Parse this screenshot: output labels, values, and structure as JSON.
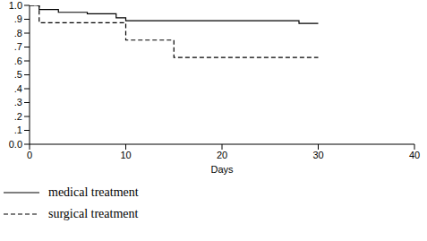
{
  "chart_data": {
    "type": "line",
    "x_label": "Days",
    "xlim": [
      0,
      40
    ],
    "xticks": [
      0,
      10,
      20,
      30,
      40
    ],
    "ylim": [
      0,
      1
    ],
    "yticks": [
      {
        "value": 0,
        "label": "0.0"
      },
      {
        "value": 0.1,
        "label": ".1"
      },
      {
        "value": 0.2,
        "label": ".2"
      },
      {
        "value": 0.3,
        "label": ".3"
      },
      {
        "value": 0.4,
        "label": ".4"
      },
      {
        "value": 0.5,
        "label": ".5"
      },
      {
        "value": 0.6,
        "label": ".6"
      },
      {
        "value": 0.7,
        "label": ".7"
      },
      {
        "value": 0.8,
        "label": ".8"
      },
      {
        "value": 0.9,
        "label": ".9"
      },
      {
        "value": 1,
        "label": "1.0"
      }
    ],
    "grid": false,
    "legend": "bottom",
    "series": [
      {
        "name": "medical treatment",
        "color": "#000000",
        "line_style": "solid",
        "x": [
          0,
          1,
          3,
          6,
          9,
          10,
          28,
          30
        ],
        "values": [
          1.0,
          0.97,
          0.95,
          0.94,
          0.91,
          0.89,
          0.87,
          0.87
        ]
      },
      {
        "name": "surgical treatment",
        "color": "#000000",
        "line_style": "dashed",
        "x": [
          0,
          1,
          10,
          15,
          30
        ],
        "values": [
          1.0,
          0.875,
          0.75,
          0.625,
          0.625
        ]
      }
    ]
  }
}
